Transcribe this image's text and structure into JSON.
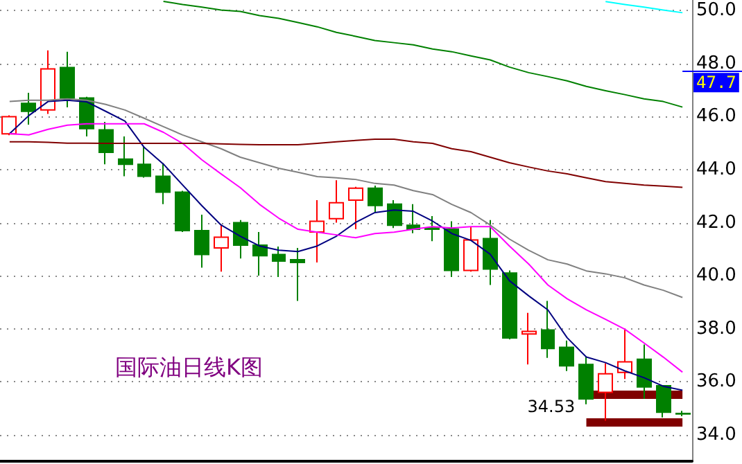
{
  "chart_data": {
    "type": "candlestick",
    "title": "国际油日线K图",
    "categories": [
      null,
      null,
      null,
      null,
      null,
      null,
      null,
      null,
      null,
      null,
      null,
      null,
      null,
      null,
      null,
      null,
      null,
      null,
      null,
      null,
      null,
      null,
      null,
      null,
      null,
      null,
      null,
      null,
      null,
      null,
      null,
      null,
      null,
      null,
      null,
      null
    ],
    "ohlc": [
      [
        45.35,
        46.05,
        45.3,
        46.0
      ],
      [
        46.5,
        46.9,
        45.7,
        46.2
      ],
      [
        46.25,
        48.5,
        46.1,
        47.8
      ],
      [
        47.85,
        48.45,
        46.35,
        46.7
      ],
      [
        46.7,
        46.75,
        45.25,
        45.55
      ],
      [
        45.5,
        45.8,
        44.2,
        44.65
      ],
      [
        44.4,
        45.25,
        43.75,
        44.2
      ],
      [
        44.2,
        44.85,
        43.7,
        43.75
      ],
      [
        43.75,
        44.25,
        42.7,
        43.15
      ],
      [
        43.15,
        43.2,
        41.65,
        41.7
      ],
      [
        41.7,
        42.3,
        40.3,
        40.8
      ],
      [
        41.05,
        41.9,
        40.15,
        41.45
      ],
      [
        42.0,
        42.1,
        40.65,
        41.15
      ],
      [
        41.15,
        41.65,
        40.0,
        40.75
      ],
      [
        40.8,
        41.1,
        39.95,
        40.55
      ],
      [
        40.6,
        41.05,
        39.05,
        40.5
      ],
      [
        41.65,
        42.85,
        40.5,
        42.05
      ],
      [
        42.15,
        43.6,
        42.0,
        42.75
      ],
      [
        42.85,
        43.35,
        41.75,
        43.3
      ],
      [
        43.3,
        43.4,
        42.4,
        42.65
      ],
      [
        42.7,
        42.85,
        41.8,
        41.9
      ],
      [
        41.9,
        42.7,
        41.6,
        41.75
      ],
      [
        41.8,
        42.25,
        41.3,
        41.75
      ],
      [
        41.75,
        42.05,
        39.95,
        40.2
      ],
      [
        40.2,
        41.85,
        40.15,
        41.35
      ],
      [
        41.4,
        42.1,
        39.65,
        40.25
      ],
      [
        40.1,
        40.2,
        37.6,
        37.65
      ],
      [
        37.8,
        38.6,
        36.65,
        37.9
      ],
      [
        37.95,
        39.05,
        36.9,
        37.25
      ],
      [
        37.3,
        37.55,
        36.4,
        36.6
      ],
      [
        36.65,
        36.95,
        35.15,
        35.35
      ],
      [
        35.6,
        36.7,
        34.53,
        36.3
      ],
      [
        36.35,
        38.0,
        36.1,
        36.75
      ],
      [
        36.85,
        37.4,
        35.35,
        35.8
      ],
      [
        35.85,
        35.85,
        34.65,
        34.85
      ],
      [
        34.8,
        34.9,
        34.7,
        34.78
      ]
    ],
    "colors": [
      "#ff0000",
      "#008000",
      "#ff0000",
      "#008000",
      "#008000",
      "#008000",
      "#008000",
      "#008000",
      "#008000",
      "#008000",
      "#008000",
      "#ff0000",
      "#008000",
      "#008000",
      "#008000",
      "#008000",
      "#ff0000",
      "#ff0000",
      "#ff0000",
      "#008000",
      "#008000",
      "#008000",
      "#008000",
      "#008000",
      "#ff0000",
      "#008000",
      "#008000",
      "#ff0000",
      "#008000",
      "#008000",
      "#008000",
      "#ff0000",
      "#ff0000",
      "#008000",
      "#008000",
      "#008000"
    ],
    "series": [
      {
        "type": "line",
        "color": "#000080",
        "values": [
          45.36,
          46.04,
          46.57,
          46.62,
          46.56,
          46.2,
          45.83,
          44.84,
          44.21,
          43.42,
          42.64,
          41.91,
          41.49,
          41.12,
          40.96,
          40.91,
          41.12,
          41.49,
          42.01,
          42.38,
          42.48,
          42.43,
          42.06,
          41.59,
          41.33,
          40.81,
          39.81,
          39.24,
          38.71,
          37.66,
          36.93,
          36.72,
          36.41,
          36.15,
          35.83,
          35.68
        ]
      },
      {
        "type": "line",
        "color": "#ff00ff",
        "values": [
          45.36,
          45.31,
          45.52,
          45.68,
          45.73,
          45.73,
          45.73,
          45.73,
          45.41,
          44.99,
          44.37,
          43.84,
          43.32,
          42.69,
          42.17,
          41.75,
          41.64,
          41.54,
          41.43,
          41.59,
          41.64,
          41.75,
          41.85,
          41.8,
          41.85,
          41.85,
          41.12,
          40.44,
          39.65,
          39.13,
          38.71,
          38.35,
          37.98,
          37.46,
          36.93,
          36.36
        ]
      },
      {
        "type": "line",
        "color": "#808080",
        "values": [
          46.57,
          46.62,
          46.62,
          46.67,
          46.62,
          46.46,
          46.25,
          45.94,
          45.62,
          45.31,
          45.05,
          44.79,
          44.47,
          44.26,
          44.05,
          43.9,
          43.74,
          43.69,
          43.63,
          43.48,
          43.42,
          43.21,
          43.06,
          42.69,
          42.38,
          41.91,
          41.38,
          40.96,
          40.6,
          40.44,
          40.18,
          40.07,
          39.92,
          39.65,
          39.45,
          39.18
        ]
      },
      {
        "type": "line",
        "color": "#800000",
        "values": [
          45.05,
          45.05,
          45.03,
          45.0,
          45.0,
          44.99,
          44.99,
          44.99,
          44.99,
          44.99,
          44.99,
          44.97,
          44.95,
          44.94,
          44.94,
          44.94,
          44.99,
          45.05,
          45.1,
          45.15,
          45.15,
          45.05,
          44.99,
          44.79,
          44.68,
          44.47,
          44.26,
          44.1,
          43.95,
          43.84,
          43.69,
          43.55,
          43.48,
          43.42,
          43.38,
          43.33
        ]
      },
      {
        "type": "line",
        "color": "#008000",
        "values": [
          null,
          null,
          null,
          null,
          null,
          null,
          null,
          null,
          50.35,
          50.23,
          50.13,
          50.02,
          49.97,
          49.81,
          49.71,
          49.55,
          49.39,
          49.18,
          49.03,
          48.87,
          48.79,
          48.71,
          48.55,
          48.45,
          48.29,
          48.14,
          47.87,
          47.66,
          47.51,
          47.35,
          47.14,
          46.98,
          46.83,
          46.67,
          46.57,
          46.36
        ]
      },
      {
        "type": "line",
        "color": "#00ffff",
        "values": [
          null,
          null,
          null,
          null,
          null,
          null,
          null,
          null,
          null,
          null,
          null,
          null,
          null,
          null,
          null,
          null,
          null,
          null,
          null,
          null,
          null,
          null,
          null,
          null,
          null,
          null,
          null,
          null,
          null,
          null,
          null,
          50.34,
          50.23,
          50.13,
          50.02,
          49.92
        ]
      }
    ],
    "ylim": [
      33,
      50.4
    ],
    "yticks": [
      {
        "value": 34,
        "label": "34.0"
      },
      {
        "value": 36,
        "label": "36.0"
      },
      {
        "value": 38,
        "label": "38.0"
      },
      {
        "value": 40,
        "label": "40.0"
      },
      {
        "value": 42,
        "label": "42.0"
      },
      {
        "value": 44,
        "label": "44.0"
      },
      {
        "value": 46,
        "label": "46.0"
      },
      {
        "value": 48,
        "label": "48.0"
      },
      {
        "value": 50,
        "label": "50.0"
      }
    ],
    "ref_lines": [
      {
        "axis": "y",
        "value": 35.52,
        "color": "#800000"
      },
      {
        "axis": "y",
        "value": 34.45,
        "color": "#800000"
      },
      {
        "axis": "y",
        "value": 47.7,
        "label": "47.7",
        "color": "#0000ff"
      }
    ],
    "annotations": [
      "34.53"
    ],
    "grid": "y",
    "marker": "none",
    "line_style": "solid",
    "tick_labels": "y"
  }
}
